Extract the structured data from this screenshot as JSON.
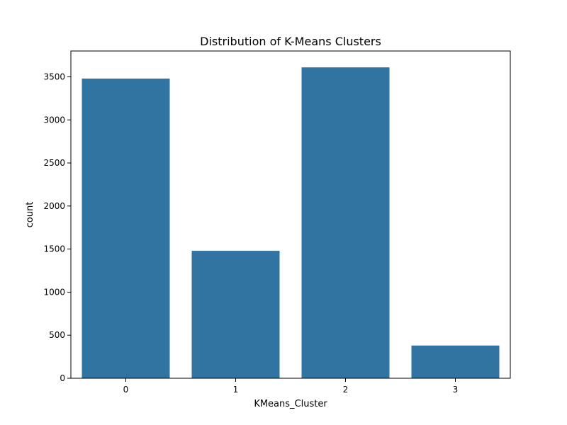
{
  "chart_data": {
    "type": "bar",
    "title": "Distribution of K-Means Clusters",
    "xlabel": "KMeans_Cluster",
    "ylabel": "count",
    "categories": [
      "0",
      "1",
      "2",
      "3"
    ],
    "values": [
      3480,
      1480,
      3610,
      380
    ],
    "ylim": [
      0,
      3800
    ],
    "yticks": [
      0,
      500,
      1000,
      1500,
      2000,
      2500,
      3000,
      3500
    ],
    "grid": false,
    "bar_color": "#3274a1"
  }
}
